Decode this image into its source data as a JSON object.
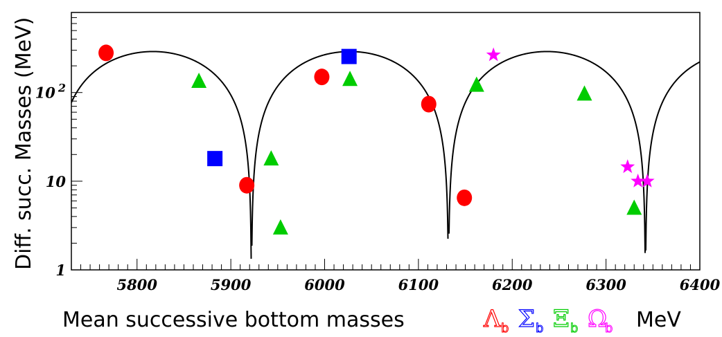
{
  "chart_data": {
    "type": "scatter",
    "xlabel": "Mean successive bottom masses",
    "xunit": "MeV",
    "ylabel": "Diff. succ. Masses (MeV)",
    "xlim": [
      5730,
      6400
    ],
    "ylim": [
      1,
      800
    ],
    "yscale": "log",
    "xticks": [
      5800,
      5900,
      6000,
      6100,
      6200,
      6300,
      6400
    ],
    "yticks": [
      {
        "value": 1,
        "label": "1"
      },
      {
        "value": 10,
        "label": "10"
      },
      {
        "value": 100,
        "label": "10 2",
        "base": "10",
        "exp": "2"
      }
    ],
    "grid": false,
    "legend": [
      {
        "symbol": "Λ",
        "subscript": "b",
        "color": "#ff0000"
      },
      {
        "symbol": "Σ",
        "subscript": "b",
        "color": "#0000ff"
      },
      {
        "symbol": "Ξ",
        "subscript": "b",
        "color": "#00cc00"
      },
      {
        "symbol": "Ω",
        "subscript": "b",
        "color": "#ff00ff"
      }
    ],
    "curve": {
      "color": "#000000",
      "amplitude": 290,
      "zeros": [
        5922,
        6132,
        6342
      ],
      "period": 420
    },
    "series": [
      {
        "marker": "circle",
        "color": "#ff0000",
        "points": [
          [
            5767,
            280
          ],
          [
            5917,
            9
          ],
          [
            5997,
            150
          ],
          [
            6111,
            74
          ],
          [
            6149,
            6.5
          ]
        ]
      },
      {
        "marker": "square",
        "color": "#0000ff",
        "points": [
          [
            5883,
            18
          ],
          [
            6026,
            255
          ]
        ]
      },
      {
        "marker": "triangle",
        "color": "#00cc00",
        "points": [
          [
            5866,
            135
          ],
          [
            5943,
            18
          ],
          [
            5953,
            3
          ],
          [
            6027,
            142
          ],
          [
            6162,
            122
          ],
          [
            6277,
            97
          ],
          [
            6330,
            5
          ]
        ]
      },
      {
        "marker": "star",
        "color": "#ff00ff",
        "points": [
          [
            6180,
            265
          ],
          [
            6323,
            14.5
          ],
          [
            6334,
            10
          ],
          [
            6344,
            10
          ]
        ]
      }
    ]
  }
}
